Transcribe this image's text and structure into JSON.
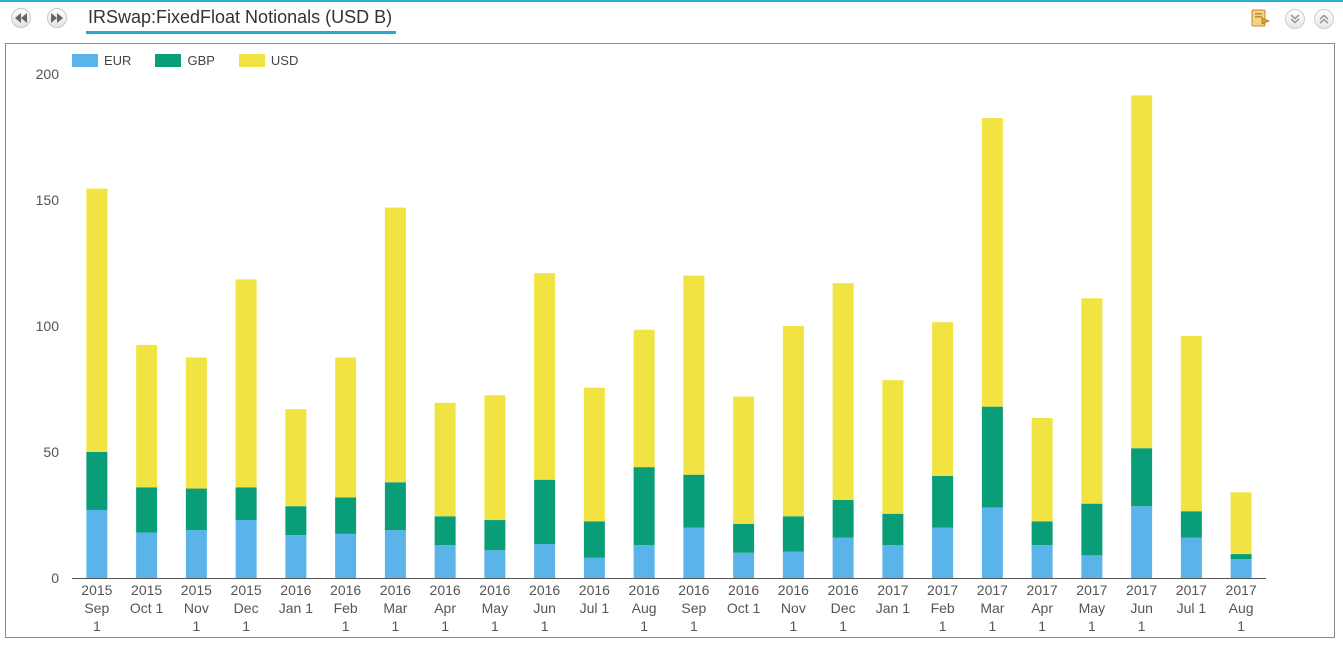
{
  "header": {
    "title": "IRSwap:FixedFloat Notionals (USD B)",
    "nav": {
      "prev_icon": "rewind-icon",
      "next_icon": "fast-forward-icon"
    },
    "tools": [
      {
        "name": "export-icon"
      },
      {
        "name": "collapse-icon"
      },
      {
        "name": "expand-icon"
      }
    ]
  },
  "colors": {
    "accent": "#2aa8d4",
    "EUR": "#5ab4ea",
    "GBP": "#0a9e78",
    "USD": "#f1e342"
  },
  "chart_data": {
    "type": "bar",
    "stacked": true,
    "title": "IRSwap:FixedFloat Notionals (USD B)",
    "xlabel": "",
    "ylabel": "",
    "ylim": [
      0,
      200
    ],
    "yticks": [
      0,
      50,
      100,
      150,
      200
    ],
    "grid": false,
    "legend_position": "top-left",
    "categories": [
      [
        "2015",
        "Sep",
        "1"
      ],
      [
        "2015",
        "Oct 1"
      ],
      [
        "2015",
        "Nov",
        "1"
      ],
      [
        "2015",
        "Dec",
        "1"
      ],
      [
        "2016",
        "Jan 1"
      ],
      [
        "2016",
        "Feb",
        "1"
      ],
      [
        "2016",
        "Mar",
        "1"
      ],
      [
        "2016",
        "Apr",
        "1"
      ],
      [
        "2016",
        "May",
        "1"
      ],
      [
        "2016",
        "Jun",
        "1"
      ],
      [
        "2016",
        "Jul 1"
      ],
      [
        "2016",
        "Aug",
        "1"
      ],
      [
        "2016",
        "Sep",
        "1"
      ],
      [
        "2016",
        "Oct 1"
      ],
      [
        "2016",
        "Nov",
        "1"
      ],
      [
        "2016",
        "Dec",
        "1"
      ],
      [
        "2017",
        "Jan 1"
      ],
      [
        "2017",
        "Feb",
        "1"
      ],
      [
        "2017",
        "Mar",
        "1"
      ],
      [
        "2017",
        "Apr",
        "1"
      ],
      [
        "2017",
        "May",
        "1"
      ],
      [
        "2017",
        "Jun",
        "1"
      ],
      [
        "2017",
        "Jul 1"
      ],
      [
        "2017",
        "Aug",
        "1"
      ]
    ],
    "series": [
      {
        "name": "EUR",
        "values": [
          27,
          18,
          19,
          23,
          17,
          17.5,
          19,
          13,
          11,
          13.5,
          8,
          13,
          20,
          10,
          10.5,
          16,
          13,
          20,
          28,
          13,
          9,
          28.5,
          16,
          7.5
        ]
      },
      {
        "name": "GBP",
        "values": [
          23,
          18,
          16.5,
          13,
          11.5,
          14.5,
          19,
          11.5,
          12,
          25.5,
          14.5,
          31,
          21,
          11.5,
          14,
          15,
          12.5,
          20.5,
          40,
          9.5,
          20.5,
          23,
          10.5,
          2
        ]
      },
      {
        "name": "USD",
        "values": [
          104.5,
          56.5,
          52,
          82.5,
          38.5,
          55.5,
          109,
          45,
          49.5,
          82,
          53,
          54.5,
          79,
          50.5,
          75.5,
          86,
          53,
          61,
          114.5,
          41,
          81.5,
          140,
          69.5,
          24.5
        ]
      }
    ]
  }
}
